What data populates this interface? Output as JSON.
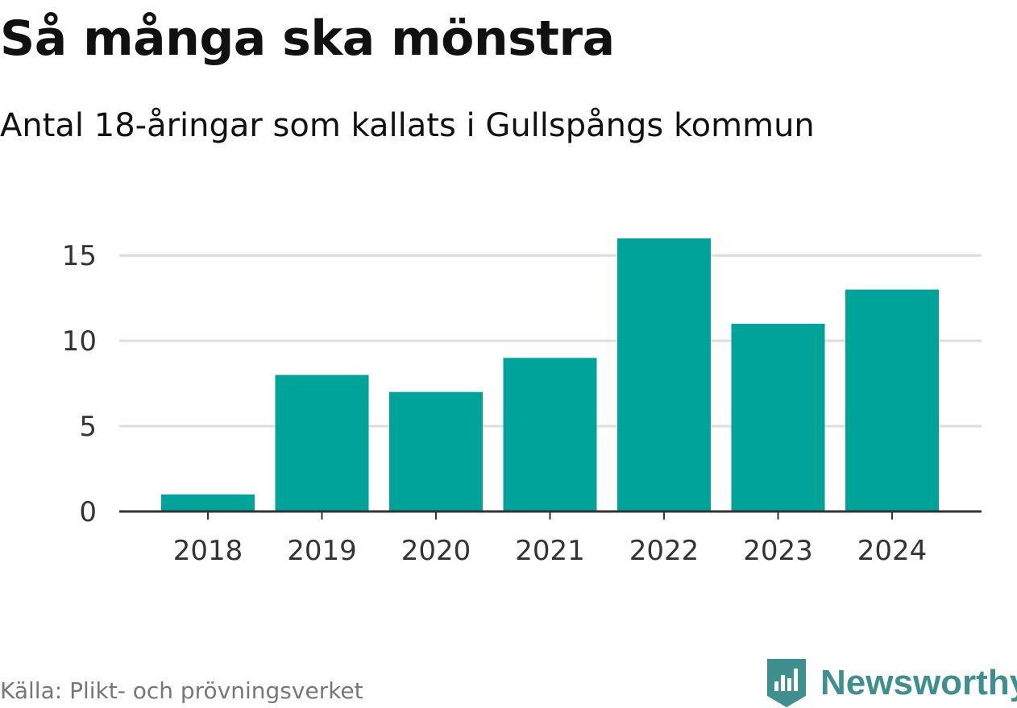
{
  "header": {
    "title": "Så många ska mönstra",
    "subtitle": "Antal 18-åringar som kallats i Gullspångs kommun"
  },
  "footer": {
    "source": "Källa: Plikt- och prövningsverket",
    "brand": "Newsworthy"
  },
  "colors": {
    "bar": "#00a39a",
    "brand": "#3f8f8f",
    "grid": "#dddddd",
    "axis": "#333333"
  },
  "chart_data": {
    "type": "bar",
    "title": "Så många ska mönstra",
    "subtitle": "Antal 18-åringar som kallats i Gullspångs kommun",
    "categories": [
      "2018",
      "2019",
      "2020",
      "2021",
      "2022",
      "2023",
      "2024"
    ],
    "values": [
      1,
      8,
      7,
      9,
      16,
      11,
      13
    ],
    "xlabel": "",
    "ylabel": "",
    "ylim": [
      0,
      16
    ],
    "yticks": [
      0,
      5,
      10,
      15
    ],
    "grid": true,
    "legend": "none"
  }
}
